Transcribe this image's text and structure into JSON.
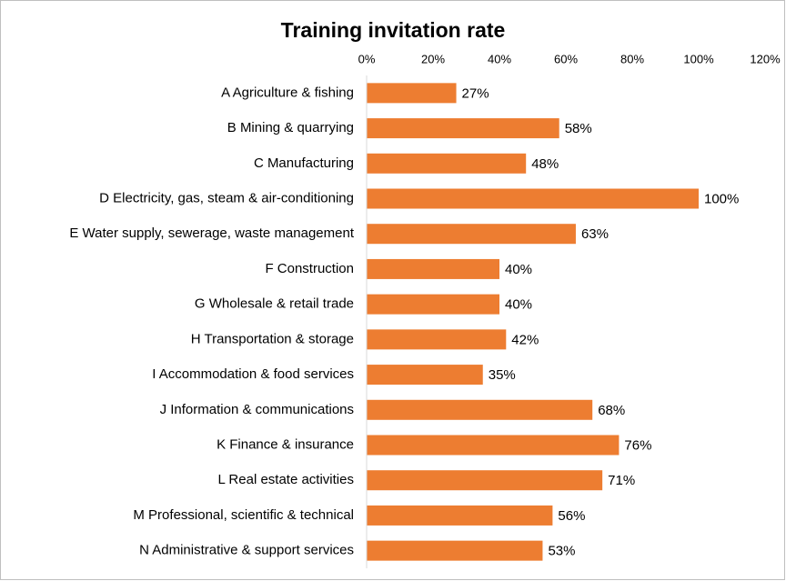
{
  "chart_data": {
    "type": "bar",
    "orientation": "horizontal",
    "title": "Training invitation rate",
    "categories": [
      "A Agriculture & fishing",
      "B Mining & quarrying",
      "C Manufacturing",
      "D Electricity, gas, steam & air-conditioning",
      "E Water supply, sewerage, waste management",
      "F Construction",
      "G Wholesale & retail trade",
      "H Transportation & storage",
      "I Accommodation & food services",
      "J Information & communications",
      "K Finance & insurance",
      "L Real estate activities",
      "M Professional, scientific & technical",
      "N Administrative & support services"
    ],
    "values": [
      27,
      58,
      48,
      100,
      63,
      40,
      40,
      42,
      35,
      68,
      76,
      71,
      56,
      53
    ],
    "value_labels": [
      "27%",
      "58%",
      "48%",
      "100%",
      "63%",
      "40%",
      "40%",
      "42%",
      "35%",
      "68%",
      "76%",
      "71%",
      "56%",
      "53%"
    ],
    "color": "#ed7d31",
    "xlim": [
      0,
      120
    ],
    "xticks": [
      {
        "value": 0,
        "label": "0%"
      },
      {
        "value": 20,
        "label": "20%"
      },
      {
        "value": 40,
        "label": "40%"
      },
      {
        "value": 60,
        "label": "60%"
      },
      {
        "value": 80,
        "label": "80%"
      },
      {
        "value": 100,
        "label": "100%"
      },
      {
        "value": 120,
        "label": "120%"
      }
    ],
    "grid": false
  }
}
